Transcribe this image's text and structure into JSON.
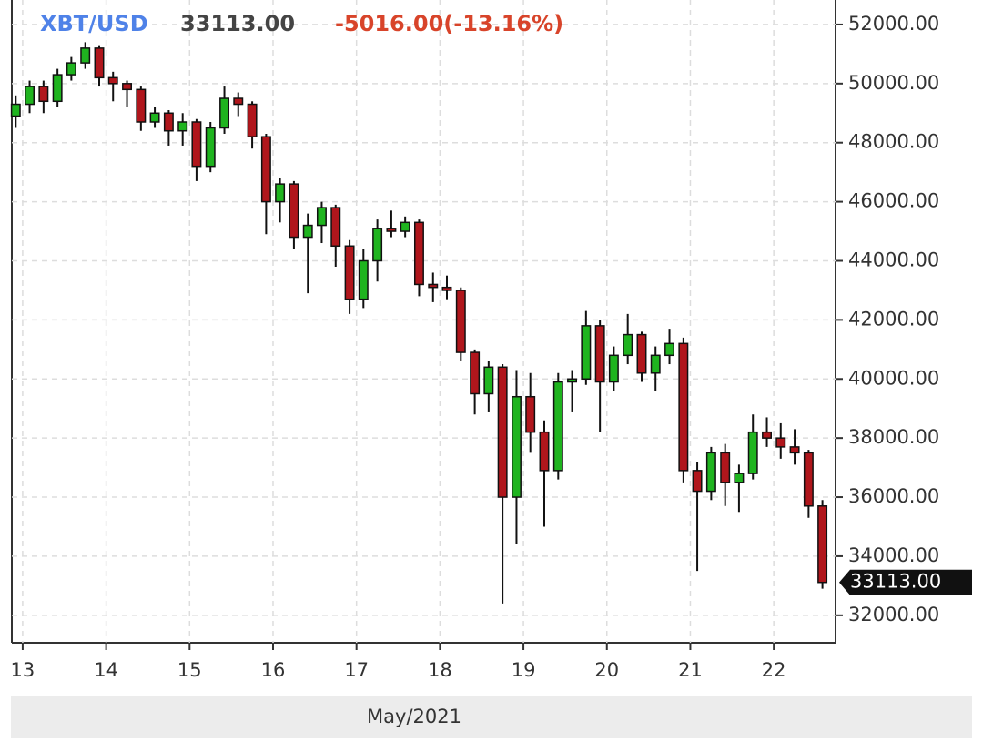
{
  "chart_data": {
    "type": "candlestick",
    "symbol": "XBT/USD",
    "last": {
      "value": 33113,
      "label": "33113.00"
    },
    "change": "-5016.00(-13.16%)",
    "x_label": "May/2021",
    "up_color": "#1fb41f",
    "down_color": "#b0161c",
    "grid": true,
    "xlim": [
      12.87,
      22.74
    ],
    "xticks": [
      13,
      14,
      15,
      16,
      17,
      18,
      19,
      20,
      21,
      22
    ],
    "ylim": [
      31070,
      52830
    ],
    "yticks": [
      {
        "value": 32000,
        "label": "32000.00"
      },
      {
        "value": 34000,
        "label": "34000.00"
      },
      {
        "value": 36000,
        "label": "36000.00"
      },
      {
        "value": 38000,
        "label": "38000.00"
      },
      {
        "value": 40000,
        "label": "40000.00"
      },
      {
        "value": 42000,
        "label": "42000.00"
      },
      {
        "value": 44000,
        "label": "44000.00"
      },
      {
        "value": 46000,
        "label": "46000.00"
      },
      {
        "value": 48000,
        "label": "48000.00"
      },
      {
        "value": 50000,
        "label": "50000.00"
      },
      {
        "value": 52000,
        "label": "52000.00"
      }
    ],
    "x": [
      12.917,
      13.083,
      13.25,
      13.417,
      13.583,
      13.75,
      13.917,
      14.083,
      14.25,
      14.417,
      14.583,
      14.75,
      14.917,
      15.083,
      15.25,
      15.417,
      15.583,
      15.75,
      15.917,
      16.083,
      16.25,
      16.417,
      16.583,
      16.75,
      16.917,
      17.083,
      17.25,
      17.417,
      17.583,
      17.75,
      17.917,
      18.083,
      18.25,
      18.417,
      18.583,
      18.75,
      18.917,
      19.083,
      19.25,
      19.417,
      19.583,
      19.75,
      19.917,
      20.083,
      20.25,
      20.417,
      20.583,
      20.75,
      20.917,
      21.083,
      21.25,
      21.417,
      21.583,
      21.75,
      21.917,
      22.083,
      22.25,
      22.417,
      22.583
    ],
    "open": [
      48900,
      49300,
      49900,
      49400,
      50300,
      50700,
      51200,
      50200,
      50000,
      49800,
      48700,
      49000,
      48400,
      48700,
      47200,
      48500,
      49500,
      49300,
      48200,
      46000,
      46600,
      44800,
      45200,
      45800,
      44500,
      42700,
      44000,
      45100,
      45000,
      45300,
      43200,
      43100,
      43000,
      40900,
      39500,
      40400,
      36000,
      39400,
      38200,
      36900,
      39900,
      40000,
      41800,
      39900,
      40800,
      41500,
      40200,
      40800,
      41200,
      36900,
      36200,
      37500,
      36500,
      36800,
      38200,
      38000,
      37700,
      37500,
      35700
    ],
    "high": [
      49600,
      50100,
      50100,
      50500,
      50900,
      51400,
      51300,
      50400,
      50100,
      49900,
      49200,
      49100,
      49000,
      48800,
      48700,
      49900,
      49700,
      49400,
      48300,
      46800,
      46700,
      45600,
      46000,
      45900,
      44700,
      44400,
      45400,
      45700,
      45500,
      45400,
      43600,
      43500,
      43100,
      41000,
      40600,
      40500,
      40300,
      40200,
      38600,
      40200,
      40300,
      42300,
      42000,
      41100,
      42200,
      41600,
      41100,
      41700,
      41400,
      37200,
      37700,
      37800,
      37100,
      38800,
      38700,
      38500,
      38300,
      37600,
      35900
    ],
    "low": [
      48500,
      49000,
      49000,
      49200,
      50100,
      50500,
      49900,
      49400,
      49200,
      48400,
      48500,
      47900,
      47900,
      46700,
      47000,
      48300,
      48900,
      47800,
      44900,
      45300,
      44400,
      42900,
      44600,
      43800,
      42200,
      42400,
      43300,
      44800,
      44800,
      42800,
      42600,
      42700,
      40600,
      38800,
      38900,
      32400,
      34400,
      37500,
      35000,
      36600,
      38900,
      39800,
      38200,
      39600,
      40500,
      39900,
      39600,
      40500,
      36500,
      33500,
      35900,
      35700,
      35500,
      36600,
      37700,
      37300,
      37100,
      35300,
      32900
    ],
    "close": [
      49300,
      49900,
      49400,
      50300,
      50700,
      51200,
      50200,
      50000,
      49800,
      48700,
      49000,
      48400,
      48700,
      47200,
      48500,
      49500,
      49300,
      48200,
      46000,
      46600,
      44800,
      45200,
      45800,
      44500,
      42700,
      44000,
      45100,
      45000,
      45300,
      43200,
      43100,
      43000,
      40900,
      39500,
      40400,
      36000,
      39400,
      38200,
      36900,
      39900,
      40000,
      41800,
      39900,
      40800,
      41500,
      40200,
      40800,
      41200,
      36900,
      36200,
      37500,
      36500,
      36800,
      38200,
      38000,
      37700,
      37500,
      35700,
      33113
    ]
  }
}
